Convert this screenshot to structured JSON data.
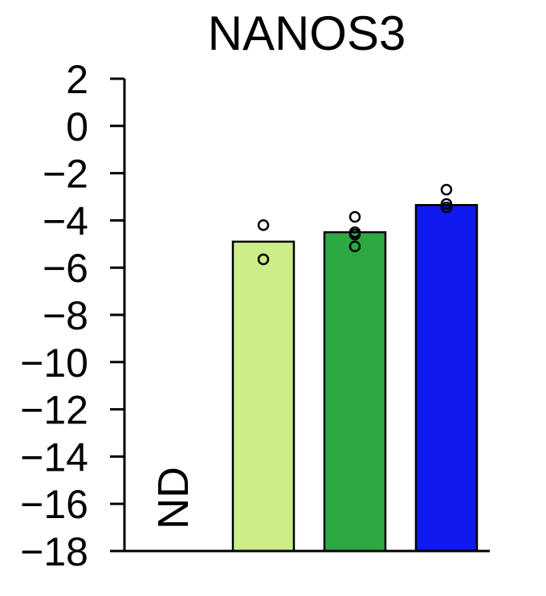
{
  "chart_data": {
    "type": "bar",
    "title": "NANOS3",
    "xlabel": "",
    "ylabel": "",
    "ylim": [
      -18,
      2
    ],
    "yticks": [
      2,
      0,
      -2,
      -4,
      -6,
      -8,
      -10,
      -12,
      -14,
      -16,
      -18
    ],
    "grid": false,
    "legend": "none",
    "bars": [
      {
        "value": null,
        "label": "ND",
        "color": "#ffffff",
        "points": []
      },
      {
        "value": -4.9,
        "label": "",
        "color": "#cced88",
        "points": [
          -4.2,
          -5.65
        ]
      },
      {
        "value": -4.5,
        "label": "",
        "color": "#2ea843",
        "points": [
          -3.85,
          -4.5,
          -4.6,
          -5.1
        ]
      },
      {
        "value": -3.35,
        "label": "",
        "color": "#0f1af0",
        "points": [
          -2.7,
          -3.3,
          -3.45
        ]
      }
    ]
  }
}
